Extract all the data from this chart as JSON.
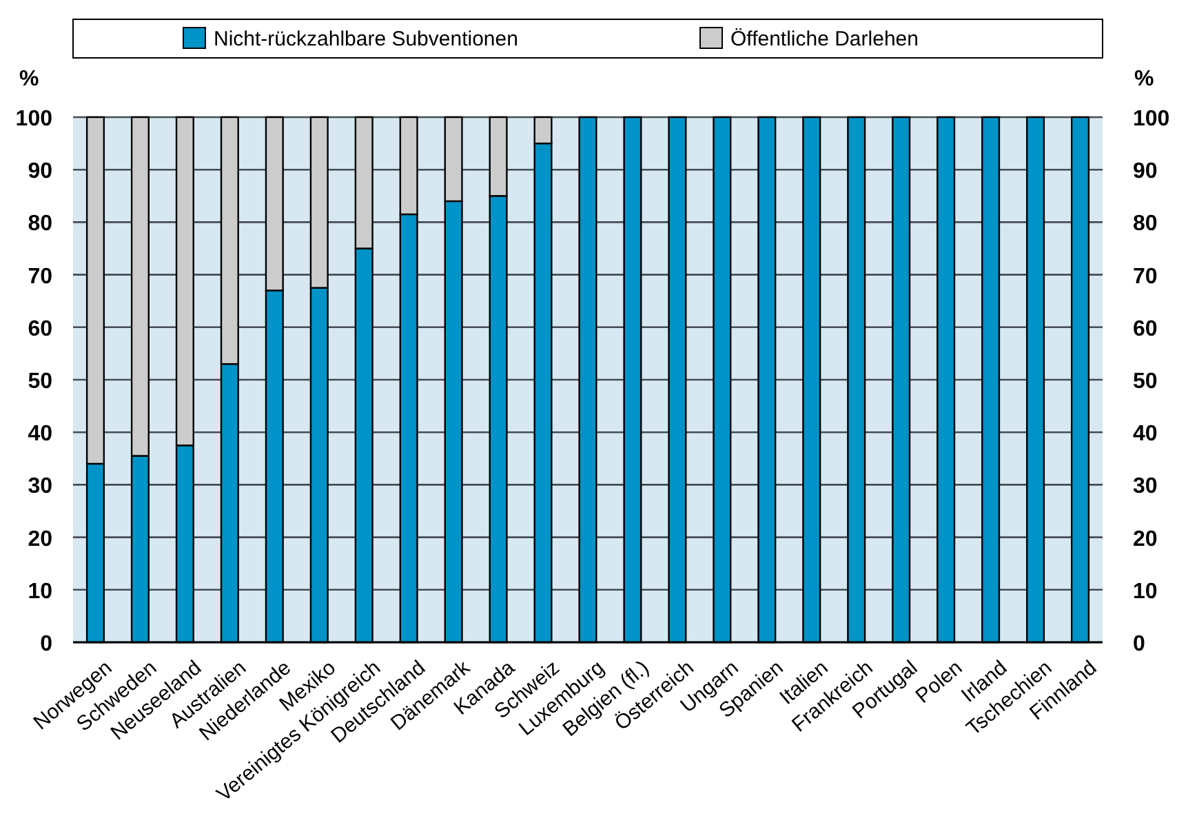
{
  "chart_data": {
    "type": "bar",
    "stacked": true,
    "ylabel": "%",
    "y2label": "%",
    "categories": [
      "Norwegen",
      "Schweden",
      "Neuseeland",
      "Australien",
      "Niederlande",
      "Mexiko",
      "Vereinigtes Königreich",
      "Deutschland",
      "Dänemark",
      "Kanada",
      "Schweiz",
      "Luxemburg",
      "Belgien (fl.)",
      "Österreich",
      "Ungarn",
      "Spanien",
      "Italien",
      "Frankreich",
      "Portugal",
      "Polen",
      "Irland",
      "Tschechien",
      "Finnland"
    ],
    "series": [
      {
        "name": "Nicht-rückzahlbare Subventionen",
        "color": "#0093c8",
        "values": [
          34,
          35.5,
          37.5,
          53,
          67,
          67.5,
          75,
          81.5,
          84,
          85,
          95,
          100,
          100,
          100,
          100,
          100,
          100,
          100,
          100,
          100,
          100,
          100,
          100
        ]
      },
      {
        "name": "Öffentliche Darlehen",
        "color": "#cccccc",
        "values": [
          66,
          64.5,
          62.5,
          47,
          33,
          32.5,
          25,
          18.5,
          16,
          15,
          5,
          0,
          0,
          0,
          0,
          0,
          0,
          0,
          0,
          0,
          0,
          0,
          0
        ]
      }
    ],
    "ylim": [
      0,
      100
    ],
    "yticks": [
      0,
      10,
      20,
      30,
      40,
      50,
      60,
      70,
      80,
      90,
      100
    ],
    "y2lim": [
      0,
      100
    ],
    "y2ticks": [
      0,
      10,
      20,
      30,
      40,
      50,
      60,
      70,
      80,
      90,
      100
    ],
    "grid": "y",
    "legend": "top"
  }
}
